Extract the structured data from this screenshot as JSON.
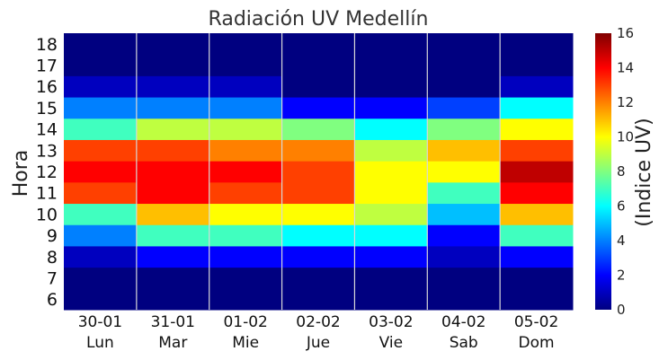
{
  "chart_data": {
    "type": "heatmap",
    "title": "Radiación UV Medellín",
    "ylabel": "Hora",
    "colorbar_label": "(Indice UV)",
    "days": [
      "30-01",
      "31-01",
      "01-02",
      "02-02",
      "03-02",
      "04-02",
      "05-02"
    ],
    "weekdays": [
      "Lun",
      "Mar",
      "Mie",
      "Jue",
      "Vie",
      "Sab",
      "Dom"
    ],
    "hours": [
      6,
      7,
      8,
      9,
      10,
      11,
      12,
      13,
      14,
      15,
      16,
      17,
      18
    ],
    "colorbar_range": [
      0,
      16
    ],
    "colorbar_ticks": [
      0,
      2,
      4,
      6,
      8,
      10,
      12,
      14,
      16
    ],
    "colormap": "jet",
    "values": [
      [
        0,
        0,
        0,
        0,
        0,
        0,
        0
      ],
      [
        0,
        0,
        0,
        0,
        0,
        0,
        0
      ],
      [
        1,
        2,
        2,
        2,
        2,
        1,
        2
      ],
      [
        4,
        7,
        7,
        6,
        6,
        2,
        7
      ],
      [
        7,
        11,
        10,
        10,
        9,
        5,
        11
      ],
      [
        13,
        14,
        13,
        13,
        10,
        7,
        14
      ],
      [
        14,
        14,
        14,
        13,
        10,
        10,
        15
      ],
      [
        13,
        13,
        12,
        12,
        9,
        11,
        13
      ],
      [
        7,
        9,
        9,
        8,
        6,
        8,
        10
      ],
      [
        4,
        4,
        4,
        2,
        2,
        3,
        6
      ],
      [
        1,
        1,
        1,
        0,
        0,
        0,
        1
      ],
      [
        0,
        0,
        0,
        0,
        0,
        0,
        0
      ],
      [
        0,
        0,
        0,
        0,
        0,
        0,
        0
      ]
    ]
  }
}
